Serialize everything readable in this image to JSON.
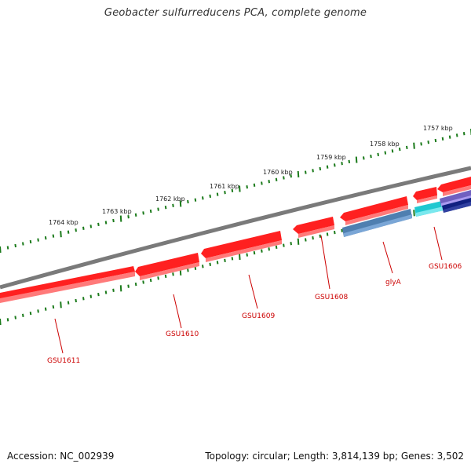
{
  "title": "Geobacter sulfurreducens PCA, complete genome",
  "accession": "Accession: NC_002939",
  "summary": "Topology: circular; Length: 3,814,139 bp; Genes: 3,502",
  "colors": {
    "backbone": "#808080",
    "forward_gene": "#ff0000",
    "ticks": "#1a7a1a",
    "gene_label": "#cc0000",
    "glyA": "#4f7fb0",
    "cyan_gene": "#1fc8d0",
    "purple_gene": "#7060c0",
    "navy_gene": "#102080"
  },
  "scale_labels": [
    {
      "text": "1757 kbp",
      "pos": 1757
    },
    {
      "text": "1758 kbp",
      "pos": 1758
    },
    {
      "text": "1759 kbp",
      "pos": 1759
    },
    {
      "text": "1760 kbp",
      "pos": 1760
    },
    {
      "text": "1761 kbp",
      "pos": 1761
    },
    {
      "text": "1762 kbp",
      "pos": 1762
    },
    {
      "text": "1763 kbp",
      "pos": 1763
    },
    {
      "text": "1764 kbp",
      "pos": 1764
    }
  ],
  "genes": [
    {
      "label": "GSU1606"
    },
    {
      "label": "glyA"
    },
    {
      "label": "GSU1608"
    },
    {
      "label": "GSU1609"
    },
    {
      "label": "GSU1610"
    },
    {
      "label": "GSU1611"
    }
  ]
}
